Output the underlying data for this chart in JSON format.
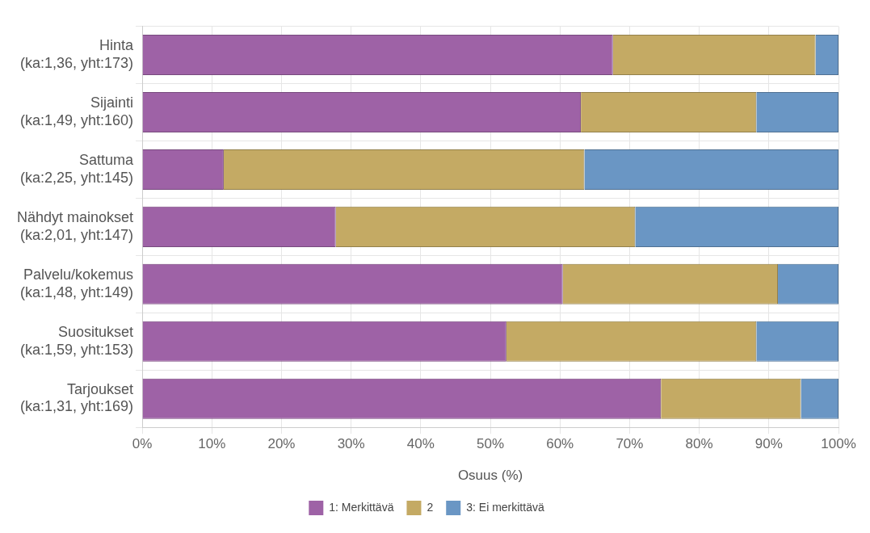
{
  "chart_data": {
    "type": "bar",
    "orientation": "horizontal",
    "stacked": true,
    "xlabel": "Osuus (%)",
    "categories": [
      "Hinta\n(ka:1,36, yht:173)",
      "Sijainti\n(ka:1,49, yht:160)",
      "Sattuma\n(ka:2,25, yht:145)",
      "Nähdyt mainokset\n(ka:2,01, yht:147)",
      "Palvelu/kokemus\n(ka:1,48, yht:149)",
      "Suositukset\n(ka:1,59, yht:153)",
      "Tarjoukset\n(ka:1,31, yht:169)"
    ],
    "series": [
      {
        "name": "1: Merkittävä",
        "color": "#9e62a6",
        "values": [
          67.6,
          63.0,
          11.7,
          27.8,
          60.4,
          52.3,
          74.5
        ]
      },
      {
        "name": "2",
        "color": "#c4aa64",
        "values": [
          29.1,
          25.2,
          51.8,
          43.0,
          30.9,
          35.9,
          20.1
        ]
      },
      {
        "name": "3: Ei merkittävä",
        "color": "#6a96c4",
        "values": [
          3.3,
          11.8,
          36.5,
          29.2,
          8.7,
          11.8,
          5.4
        ]
      }
    ],
    "xlim": [
      0,
      100
    ],
    "xticks": [
      {
        "value": 0,
        "label": "0%"
      },
      {
        "value": 10,
        "label": "10%"
      },
      {
        "value": 20,
        "label": "20%"
      },
      {
        "value": 30,
        "label": "30%"
      },
      {
        "value": 40,
        "label": "40%"
      },
      {
        "value": 50,
        "label": "50%"
      },
      {
        "value": 60,
        "label": "60%"
      },
      {
        "value": 70,
        "label": "70%"
      },
      {
        "value": 80,
        "label": "80%"
      },
      {
        "value": 90,
        "label": "90%"
      },
      {
        "value": 100,
        "label": "100%"
      }
    ],
    "grid": true,
    "legend": "bottom"
  }
}
